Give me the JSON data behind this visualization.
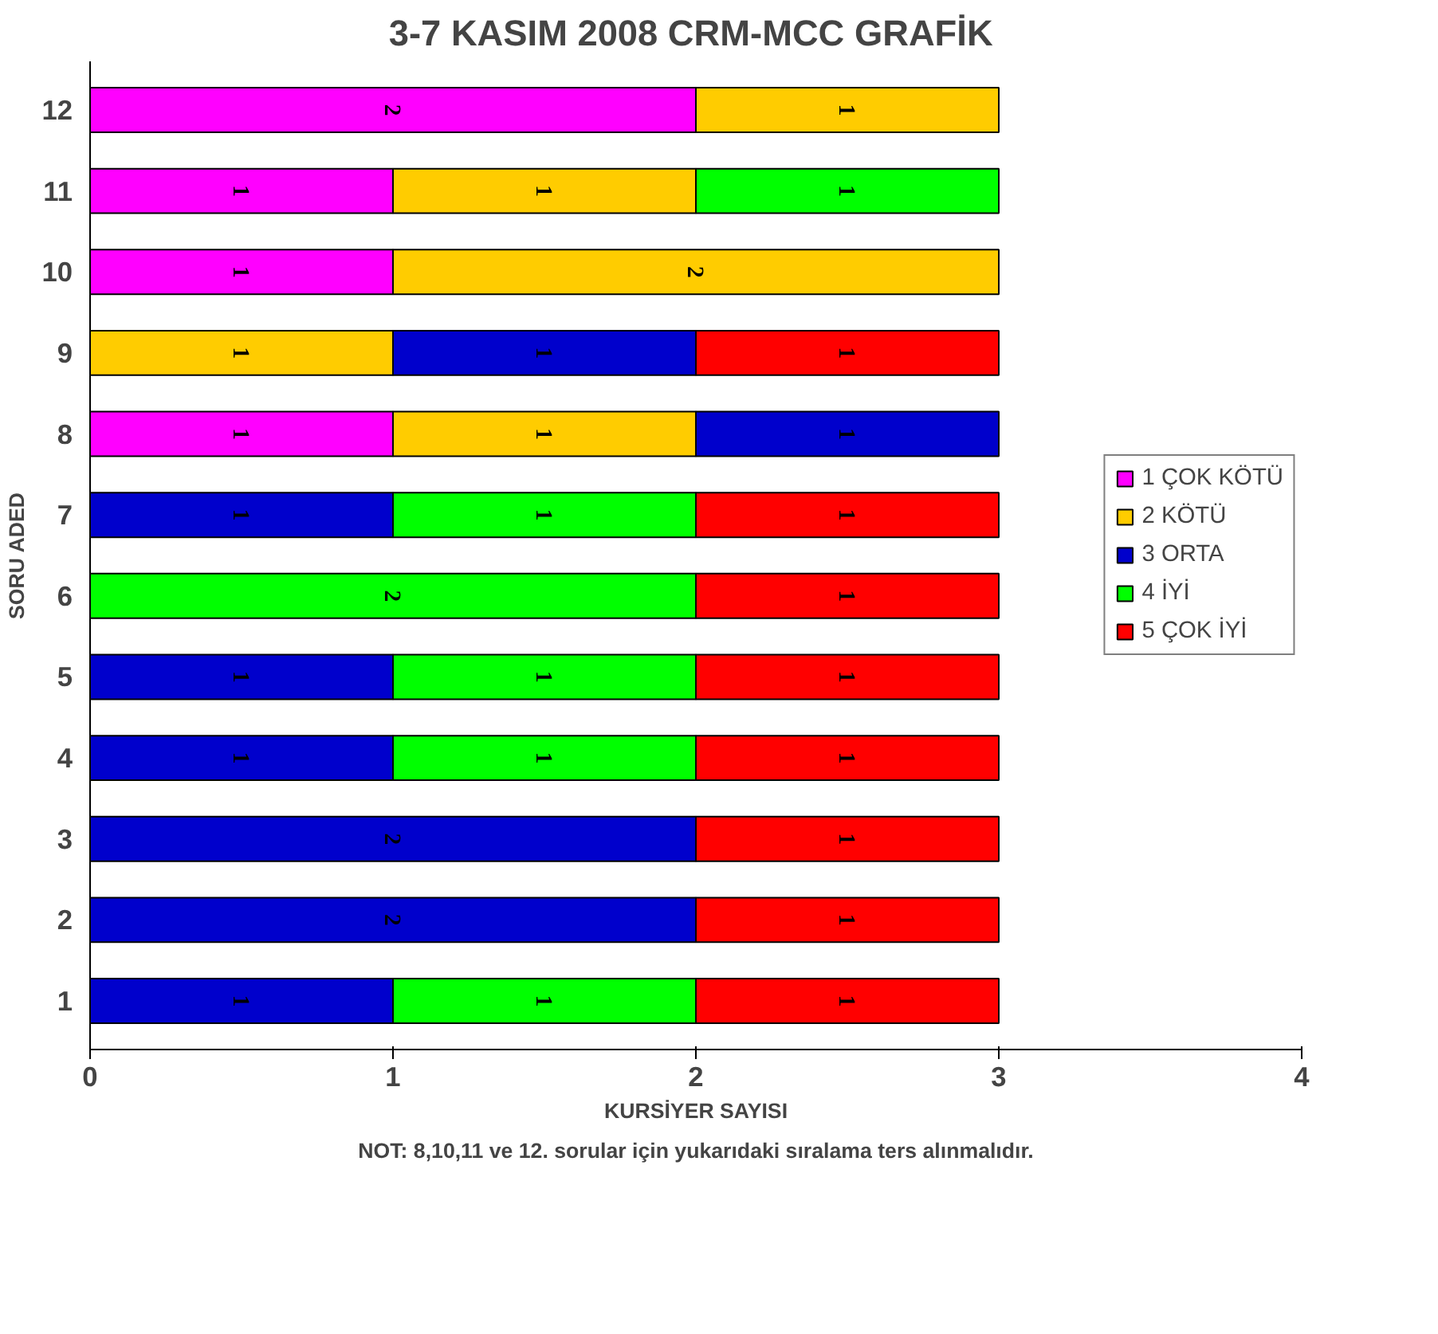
{
  "chart_data": {
    "type": "bar",
    "orientation": "horizontal",
    "stacked": true,
    "title": "3-7 KASIM  2008 CRM-MCC GRAFİK",
    "xlabel": "KURSİYER SAYISI",
    "ylabel": "SORU ADED",
    "annotations": [
      "NOT: 8,10,11 ve 12. sorular için yukarıdaki sıralama ters alınmalıdır."
    ],
    "categories": [
      "12",
      "11",
      "10",
      "9",
      "8",
      "7",
      "6",
      "5",
      "4",
      "3",
      "2",
      "1"
    ],
    "series": [
      {
        "name": "1 ÇOK KÖTÜ",
        "color": "#ff00ff",
        "values": [
          2,
          1,
          1,
          null,
          1,
          null,
          null,
          null,
          null,
          null,
          null,
          null
        ]
      },
      {
        "name": "2 KÖTÜ",
        "color": "#ffcc00",
        "values": [
          1,
          1,
          2,
          1,
          1,
          null,
          null,
          null,
          null,
          null,
          null,
          null
        ]
      },
      {
        "name": "3 ORTA",
        "color": "#0000cc",
        "values": [
          null,
          null,
          null,
          1,
          1,
          1,
          null,
          1,
          1,
          2,
          2,
          1
        ]
      },
      {
        "name": "4 İYİ",
        "color": "#00ff00",
        "values": [
          null,
          1,
          null,
          null,
          null,
          1,
          2,
          1,
          1,
          null,
          null,
          1
        ]
      },
      {
        "name": "5 ÇOK İYİ",
        "color": "#ff0000",
        "values": [
          null,
          null,
          null,
          1,
          null,
          1,
          1,
          1,
          1,
          1,
          1,
          1
        ]
      }
    ],
    "xlim": [
      0,
      4
    ],
    "xticks": [
      0,
      1,
      2,
      3,
      4
    ],
    "data_labels": true,
    "grid": false,
    "legend": "right"
  }
}
